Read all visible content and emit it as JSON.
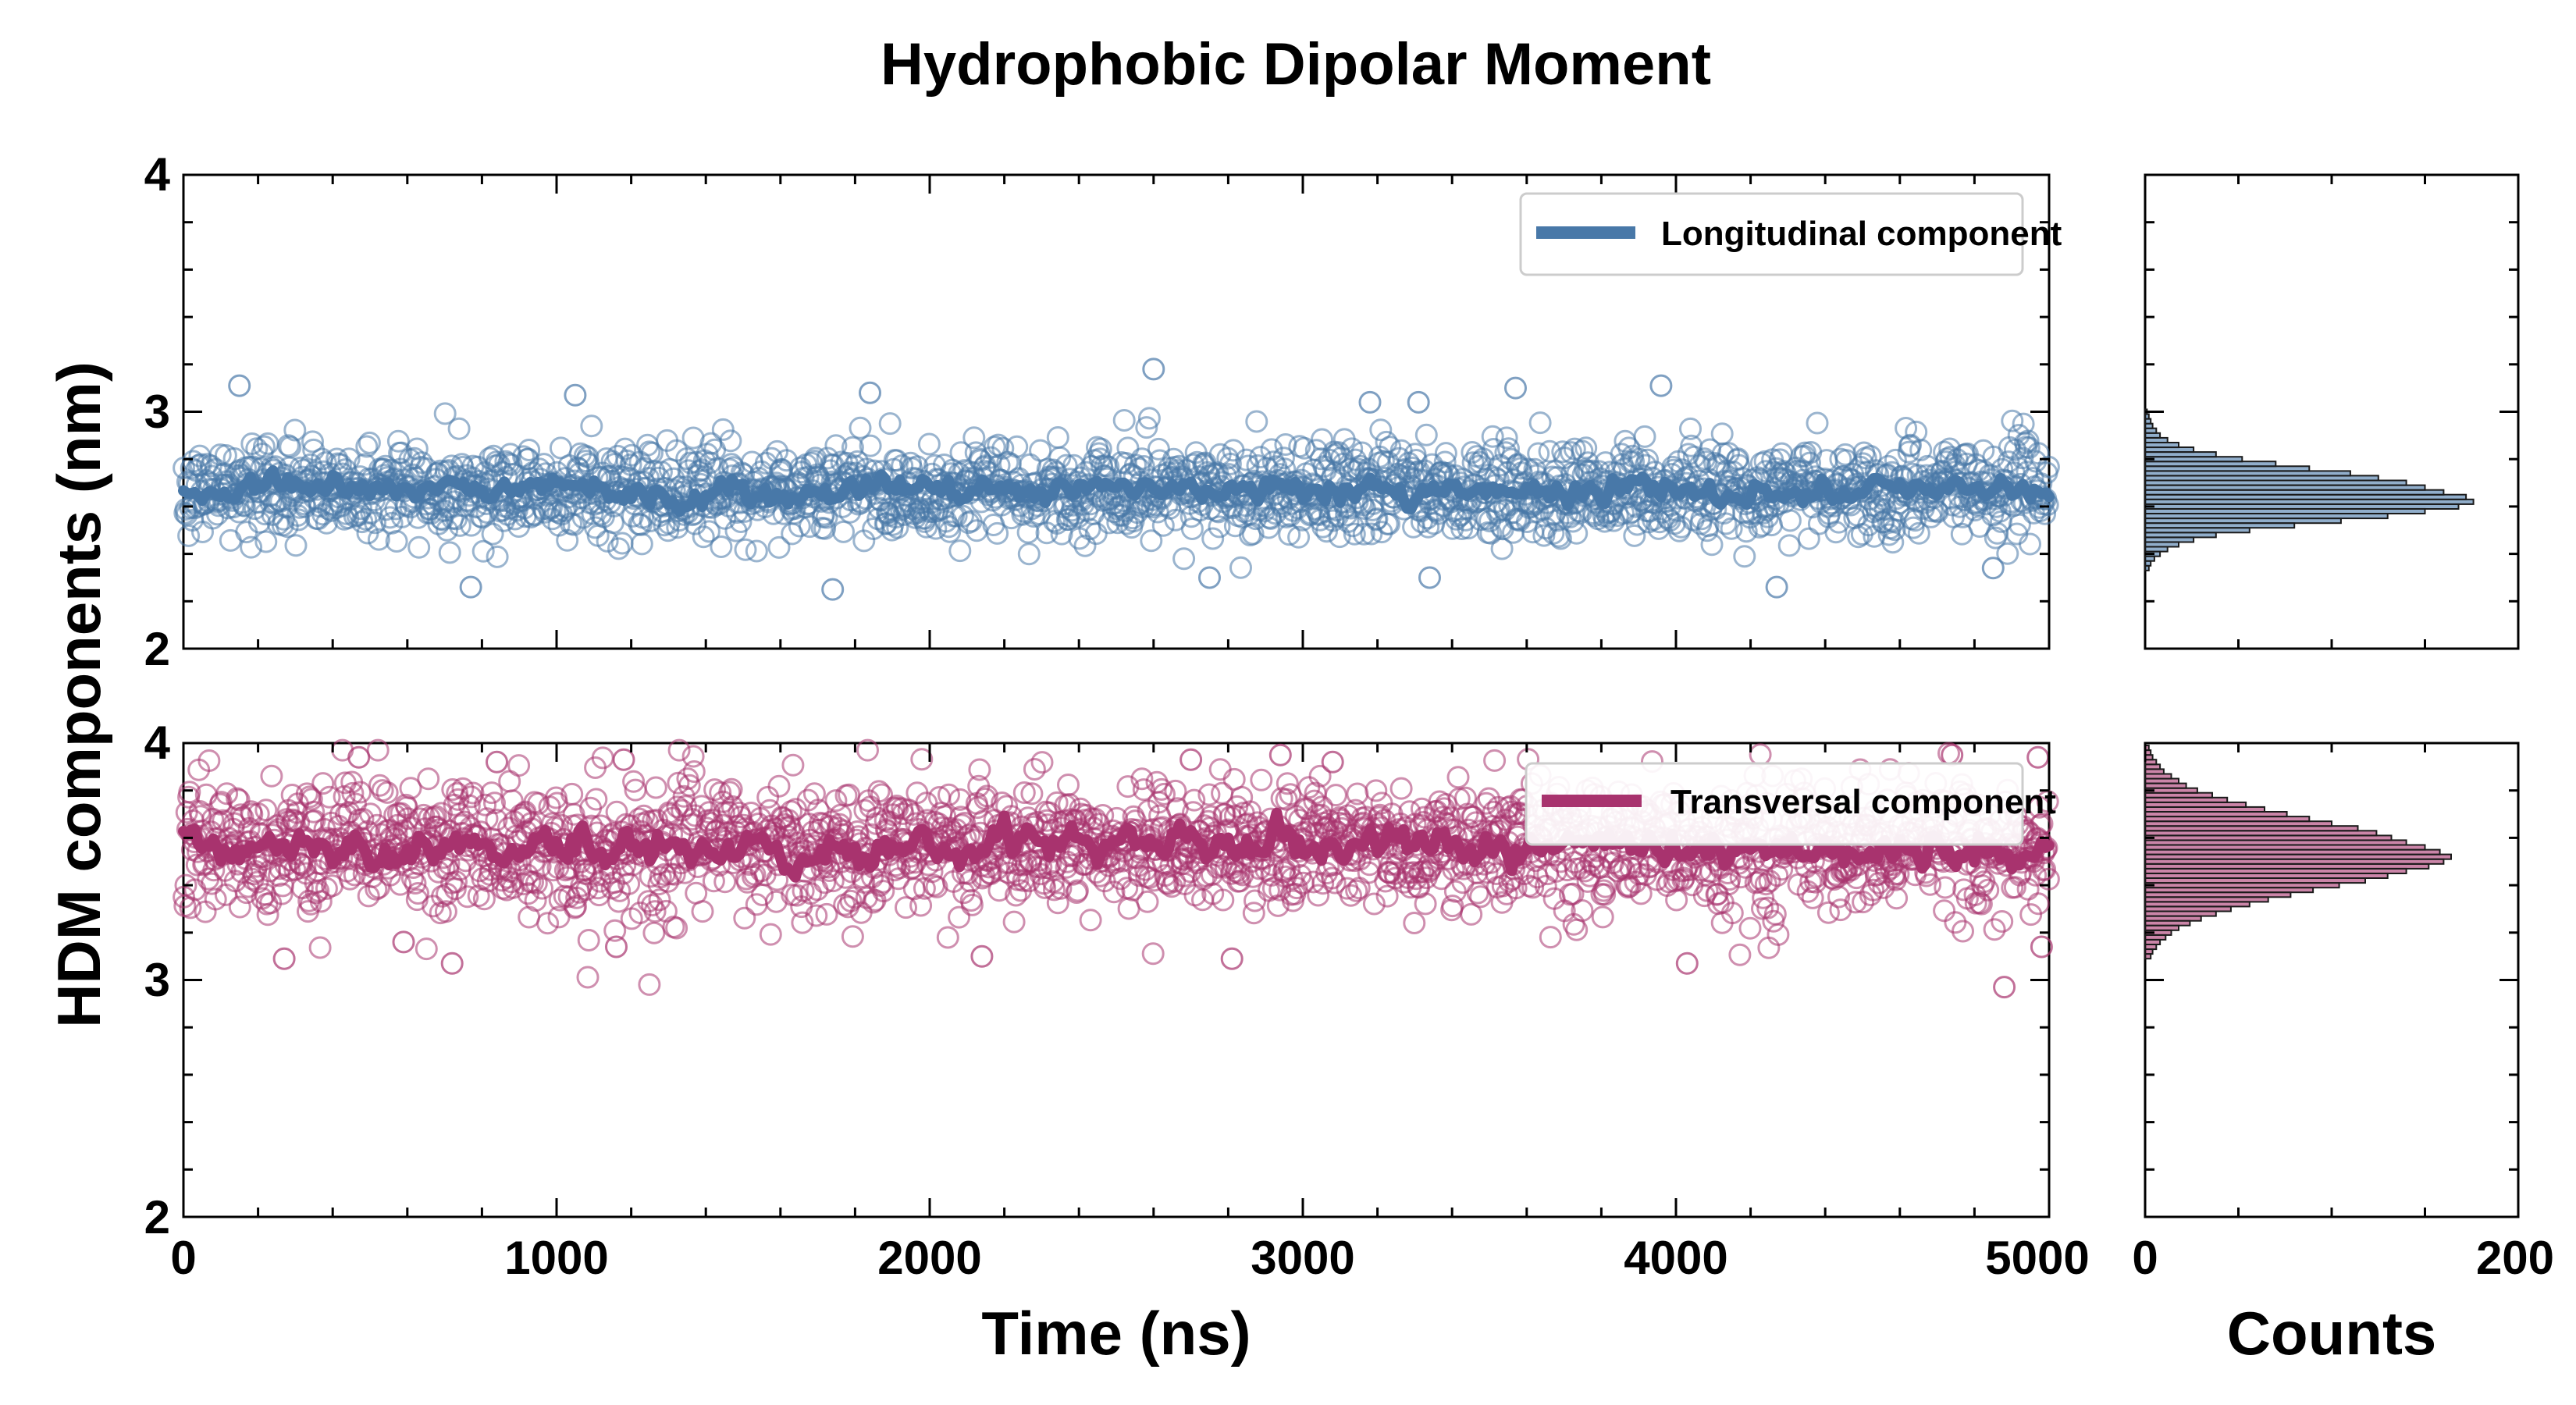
{
  "chart_data": {
    "type": "scatter",
    "title": "Hydrophobic Dipolar Moment",
    "ylabel": "HDM components (nm)",
    "main_xlabel": "Time (ns)",
    "hist_xlabel": "Counts",
    "xlim": [
      0,
      5000
    ],
    "x_ticks": [
      "0",
      "1000",
      "2000",
      "3000",
      "4000",
      "5000"
    ],
    "hist_xlim": [
      0,
      200
    ],
    "hist_ticks": [
      "0",
      "200"
    ],
    "panels": [
      {
        "ylim": [
          2,
          4
        ],
        "y_ticks": [
          "2",
          "3",
          "4"
        ],
        "series": {
          "name": "Longitudinal component",
          "color": "#4878a8",
          "marker": "open-circle",
          "mean": 2.67,
          "std": 0.1,
          "smooth_std": 0.035,
          "n_points": 2000,
          "outliers": [
            {
              "x": 150,
              "y": 3.11
            },
            {
              "x": 1050,
              "y": 3.07
            },
            {
              "x": 1840,
              "y": 3.08
            },
            {
              "x": 2600,
              "y": 3.18
            },
            {
              "x": 3180,
              "y": 3.04
            },
            {
              "x": 3310,
              "y": 3.04
            },
            {
              "x": 3570,
              "y": 3.1
            },
            {
              "x": 3960,
              "y": 3.11
            },
            {
              "x": 770,
              "y": 2.26
            },
            {
              "x": 1740,
              "y": 2.25
            },
            {
              "x": 2750,
              "y": 2.3
            },
            {
              "x": 3340,
              "y": 2.3
            },
            {
              "x": 4270,
              "y": 2.26
            },
            {
              "x": 4850,
              "y": 2.34
            }
          ],
          "histogram": {
            "bin_centers": [
              2.34,
              2.36,
              2.38,
              2.4,
              2.42,
              2.44,
              2.46,
              2.48,
              2.5,
              2.52,
              2.54,
              2.56,
              2.58,
              2.6,
              2.62,
              2.64,
              2.66,
              2.68,
              2.7,
              2.72,
              2.74,
              2.76,
              2.78,
              2.8,
              2.82,
              2.84,
              2.86,
              2.88,
              2.9,
              2.92,
              2.94,
              2.96,
              2.98,
              3.0
            ],
            "counts": [
              2,
              3,
              5,
              8,
              12,
              18,
              26,
              38,
              56,
              80,
              105,
              130,
              150,
              168,
              176,
              172,
              160,
              150,
              140,
              125,
              110,
              88,
              70,
              52,
              38,
              26,
              18,
              12,
              8,
              6,
              4,
              3,
              2,
              1
            ]
          }
        }
      },
      {
        "ylim": [
          2,
          4
        ],
        "y_ticks": [
          "2",
          "3",
          "4"
        ],
        "series": {
          "name": "Transversal component",
          "color": "#a8336e",
          "marker": "open-circle",
          "mean": 3.56,
          "std": 0.14,
          "smooth_std": 0.05,
          "n_points": 2000,
          "outliers": [
            {
              "x": 470,
              "y": 3.94
            },
            {
              "x": 840,
              "y": 3.92
            },
            {
              "x": 1180,
              "y": 3.93
            },
            {
              "x": 2700,
              "y": 3.93
            },
            {
              "x": 2940,
              "y": 3.95
            },
            {
              "x": 3080,
              "y": 3.92
            },
            {
              "x": 4740,
              "y": 3.95
            },
            {
              "x": 4970,
              "y": 3.94
            },
            {
              "x": 270,
              "y": 3.09
            },
            {
              "x": 590,
              "y": 3.16
            },
            {
              "x": 720,
              "y": 3.07
            },
            {
              "x": 1160,
              "y": 3.14
            },
            {
              "x": 2140,
              "y": 3.1
            },
            {
              "x": 2810,
              "y": 3.09
            },
            {
              "x": 4030,
              "y": 3.07
            },
            {
              "x": 4880,
              "y": 2.97
            },
            {
              "x": 4980,
              "y": 3.14
            }
          ],
          "histogram": {
            "bin_centers": [
              3.1,
              3.12,
              3.14,
              3.16,
              3.18,
              3.2,
              3.22,
              3.24,
              3.26,
              3.28,
              3.3,
              3.32,
              3.34,
              3.36,
              3.38,
              3.4,
              3.42,
              3.44,
              3.46,
              3.48,
              3.5,
              3.52,
              3.54,
              3.56,
              3.58,
              3.6,
              3.62,
              3.64,
              3.66,
              3.68,
              3.7,
              3.72,
              3.74,
              3.76,
              3.78,
              3.8,
              3.82,
              3.84,
              3.86,
              3.88,
              3.9,
              3.92,
              3.94,
              3.96,
              3.98
            ],
            "counts": [
              3,
              4,
              6,
              8,
              11,
              14,
              18,
              24,
              30,
              38,
              46,
              56,
              66,
              78,
              90,
              104,
              118,
              130,
              140,
              152,
              160,
              164,
              158,
              150,
              140,
              132,
              124,
              114,
              100,
              88,
              76,
              64,
              54,
              44,
              36,
              28,
              22,
              18,
              14,
              10,
              8,
              6,
              4,
              3,
              2
            ]
          }
        }
      }
    ]
  }
}
